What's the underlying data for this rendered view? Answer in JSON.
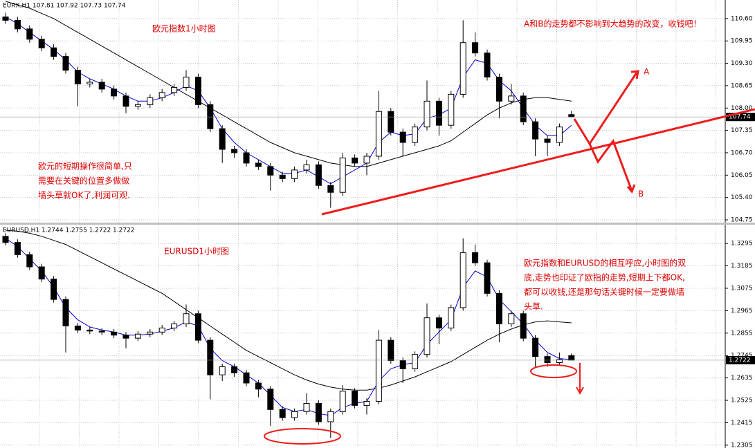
{
  "chart_data": [
    {
      "type": "candlestick",
      "title": "EURX,H1 107.81 107.92 107.73 107.74",
      "grid": true,
      "ylim": [
        104.67,
        111.14
      ],
      "yticks": [
        {
          "value": 110.6,
          "label": "110.60"
        },
        109.95,
        {
          "value": 109.3,
          "label": "109.30"
        },
        108.65,
        {
          "value": 108.0,
          "label": "108.00"
        },
        107.35,
        {
          "value": 106.7,
          "label": "106.70"
        },
        106.05,
        {
          "value": 105.4,
          "label": "105.40"
        },
        104.75
      ],
      "open": [
        110.65,
        110.55,
        110.3,
        110.0,
        109.75,
        109.5,
        109.1,
        108.7,
        108.75,
        108.55,
        108.35,
        108.05,
        108.1,
        108.3,
        108.45,
        108.6,
        108.9,
        108.1,
        107.4,
        106.8,
        106.7,
        106.4,
        106.3,
        106.05,
        105.95,
        106.2,
        106.35,
        105.75,
        105.55,
        106.55,
        106.4,
        106.6,
        107.9,
        107.3,
        107.0,
        107.45,
        108.2,
        107.5,
        108.4,
        109.9,
        109.6,
        108.9,
        108.2,
        108.35,
        107.6,
        107.1,
        107.0,
        107.81
      ],
      "high": [
        110.77,
        110.65,
        110.4,
        110.1,
        109.85,
        109.6,
        109.2,
        108.85,
        108.85,
        108.65,
        108.45,
        108.2,
        108.4,
        108.55,
        108.7,
        109.1,
        109.0,
        108.2,
        107.5,
        106.9,
        106.8,
        106.5,
        106.4,
        106.15,
        106.3,
        106.5,
        106.45,
        105.85,
        106.7,
        106.65,
        106.7,
        108.5,
        108.0,
        107.4,
        107.55,
        108.8,
        108.3,
        108.5,
        110.55,
        110.2,
        109.7,
        109.0,
        108.7,
        108.45,
        107.7,
        107.2,
        107.55,
        107.92
      ],
      "low": [
        110.45,
        110.2,
        109.9,
        109.65,
        109.4,
        109.0,
        108.05,
        108.6,
        108.45,
        108.25,
        107.85,
        107.95,
        108.0,
        108.2,
        108.35,
        108.5,
        108.0,
        107.3,
        106.4,
        106.55,
        106.3,
        106.2,
        105.6,
        105.85,
        105.85,
        106.1,
        105.65,
        105.1,
        105.45,
        106.3,
        106.05,
        106.5,
        107.2,
        106.6,
        106.9,
        107.35,
        107.2,
        107.4,
        108.3,
        109.5,
        108.8,
        107.7,
        108.1,
        107.5,
        106.6,
        106.6,
        106.9,
        107.73
      ],
      "close": [
        110.55,
        110.3,
        110.0,
        109.75,
        109.5,
        109.1,
        108.7,
        108.75,
        108.55,
        108.35,
        108.05,
        108.1,
        108.3,
        108.45,
        108.6,
        108.9,
        108.1,
        107.4,
        106.8,
        106.7,
        106.4,
        106.3,
        106.05,
        105.95,
        106.2,
        106.35,
        105.75,
        105.55,
        106.55,
        106.4,
        106.6,
        107.9,
        107.3,
        107.0,
        107.45,
        108.2,
        107.5,
        108.4,
        109.9,
        109.6,
        108.9,
        108.2,
        108.35,
        107.6,
        107.1,
        107.0,
        107.45,
        107.74
      ],
      "ma_fast": [
        110.65,
        110.45,
        110.2,
        109.95,
        109.7,
        109.4,
        109.05,
        108.85,
        108.7,
        108.55,
        108.35,
        108.2,
        108.2,
        108.3,
        108.45,
        108.65,
        108.5,
        108.0,
        107.4,
        107.0,
        106.7,
        106.5,
        106.3,
        106.1,
        106.1,
        106.2,
        106.0,
        105.8,
        106.0,
        106.2,
        106.4,
        107.0,
        107.3,
        107.2,
        107.25,
        107.7,
        107.8,
        108.0,
        108.9,
        109.4,
        109.3,
        108.8,
        108.5,
        108.0,
        107.5,
        107.2,
        107.2,
        107.5
      ],
      "ma_slow": [
        111.1,
        111.0,
        110.9,
        110.75,
        110.6,
        110.4,
        110.2,
        110.0,
        109.8,
        109.6,
        109.4,
        109.2,
        109.0,
        108.8,
        108.6,
        108.4,
        108.2,
        108.0,
        107.8,
        107.6,
        107.4,
        107.2,
        107.0,
        106.85,
        106.7,
        106.6,
        106.5,
        106.4,
        106.35,
        106.3,
        106.3,
        106.4,
        106.5,
        106.6,
        106.7,
        106.8,
        106.9,
        107.05,
        107.3,
        107.55,
        107.8,
        108.0,
        108.15,
        108.25,
        108.3,
        108.3,
        108.25,
        108.2
      ],
      "ma_fast_color": "#0000cc",
      "ma_slow_color": "#000000",
      "annotations": [
        [
          "欧元指数1小时图"
        ],
        [
          "A和B的走势都不影响到大趋势的改变，收钱吧！"
        ],
        [
          "欧元的短期操作很简单,只",
          "需要在关键的位置多做做",
          "墙头草就OK了,利润可观."
        ],
        [
          "A"
        ],
        [
          "B"
        ]
      ]
    },
    {
      "type": "candlestick",
      "title": "EURUSD,H1 1.2744 1.2755 1.2722 1.2722",
      "grid": true,
      "ylim": [
        1.2291,
        1.3387
      ],
      "yticks": [
        1.3295,
        1.3185,
        1.3075,
        1.2965,
        1.2855,
        1.2745,
        1.2635,
        1.2525,
        1.2415,
        1.2305
      ],
      "open": [
        1.333,
        1.33,
        1.324,
        1.318,
        1.312,
        1.302,
        1.289,
        1.287,
        1.2865,
        1.286,
        1.2845,
        1.283,
        1.285,
        1.286,
        1.288,
        1.29,
        1.295,
        1.282,
        1.265,
        1.269,
        1.266,
        1.261,
        1.258,
        1.248,
        1.244,
        1.247,
        1.251,
        1.242,
        1.247,
        1.257,
        1.25,
        1.252,
        1.282,
        1.272,
        1.268,
        1.275,
        1.293,
        1.288,
        1.298,
        1.325,
        1.32,
        1.305,
        1.29,
        1.295,
        1.283,
        1.274,
        1.271,
        1.2744
      ],
      "high": [
        1.3345,
        1.3315,
        1.3255,
        1.3195,
        1.3135,
        1.3035,
        1.2905,
        1.2885,
        1.288,
        1.2875,
        1.286,
        1.2865,
        1.2875,
        1.2895,
        1.2915,
        1.2995,
        1.2965,
        1.2835,
        1.2705,
        1.2705,
        1.2675,
        1.2625,
        1.2595,
        1.2495,
        1.2485,
        1.256,
        1.2525,
        1.2485,
        1.26,
        1.2585,
        1.2535,
        1.287,
        1.2835,
        1.2735,
        1.2765,
        1.3,
        1.2945,
        1.2995,
        1.332,
        1.329,
        1.3215,
        1.3065,
        1.2965,
        1.2965,
        1.2845,
        1.2755,
        1.276,
        1.2755
      ],
      "low": [
        1.3285,
        1.3225,
        1.3165,
        1.3105,
        1.3005,
        1.276,
        1.2855,
        1.285,
        1.2845,
        1.283,
        1.278,
        1.2815,
        1.2835,
        1.2845,
        1.2865,
        1.2885,
        1.2805,
        1.253,
        1.262,
        1.264,
        1.2595,
        1.254,
        1.24,
        1.2425,
        1.2425,
        1.2455,
        1.2405,
        1.234,
        1.2455,
        1.2485,
        1.2455,
        1.2505,
        1.2705,
        1.261,
        1.2665,
        1.2735,
        1.28,
        1.2865,
        1.2965,
        1.3185,
        1.3035,
        1.281,
        1.2885,
        1.2815,
        1.269,
        1.269,
        1.2695,
        1.2722
      ],
      "close": [
        1.33,
        1.324,
        1.318,
        1.312,
        1.302,
        1.289,
        1.287,
        1.2865,
        1.286,
        1.2845,
        1.283,
        1.285,
        1.286,
        1.288,
        1.29,
        1.295,
        1.282,
        1.265,
        1.269,
        1.266,
        1.261,
        1.258,
        1.248,
        1.244,
        1.247,
        1.251,
        1.242,
        1.247,
        1.257,
        1.25,
        1.252,
        1.282,
        1.272,
        1.268,
        1.275,
        1.293,
        1.288,
        1.298,
        1.325,
        1.32,
        1.305,
        1.29,
        1.295,
        1.283,
        1.274,
        1.271,
        1.2725,
        1.2722
      ],
      "ma_fast": [
        1.332,
        1.328,
        1.322,
        1.316,
        1.308,
        1.298,
        1.292,
        1.2885,
        1.287,
        1.286,
        1.2845,
        1.2845,
        1.285,
        1.2865,
        1.288,
        1.291,
        1.289,
        1.278,
        1.272,
        1.269,
        1.265,
        1.261,
        1.255,
        1.249,
        1.247,
        1.248,
        1.246,
        1.245,
        1.249,
        1.251,
        1.252,
        1.262,
        1.268,
        1.27,
        1.271,
        1.28,
        1.286,
        1.292,
        1.308,
        1.316,
        1.313,
        1.302,
        1.296,
        1.29,
        1.282,
        1.276,
        1.273,
        1.2725
      ],
      "ma_slow": [
        1.336,
        1.3355,
        1.3345,
        1.333,
        1.331,
        1.329,
        1.326,
        1.323,
        1.32,
        1.317,
        1.314,
        1.311,
        1.308,
        1.305,
        1.301,
        1.297,
        1.293,
        1.289,
        1.285,
        1.281,
        1.277,
        1.274,
        1.271,
        1.268,
        1.265,
        1.2625,
        1.2605,
        1.259,
        1.258,
        1.2575,
        1.2575,
        1.2585,
        1.26,
        1.262,
        1.264,
        1.2665,
        1.269,
        1.2715,
        1.275,
        1.2785,
        1.282,
        1.285,
        1.2875,
        1.2895,
        1.291,
        1.2915,
        1.291,
        1.2905
      ],
      "ma_fast_color": "#0000cc",
      "ma_slow_color": "#000000",
      "annotations": [
        [
          "EURUSD1小时图"
        ],
        [
          "欧元指数和EURUSD的相互呼应,小时图的双",
          "底,走势也印证了欧指的走势,短期上下都OK,",
          "都可以收钱,还是那句话关键时候一定要做墙",
          "头草."
        ]
      ]
    }
  ]
}
